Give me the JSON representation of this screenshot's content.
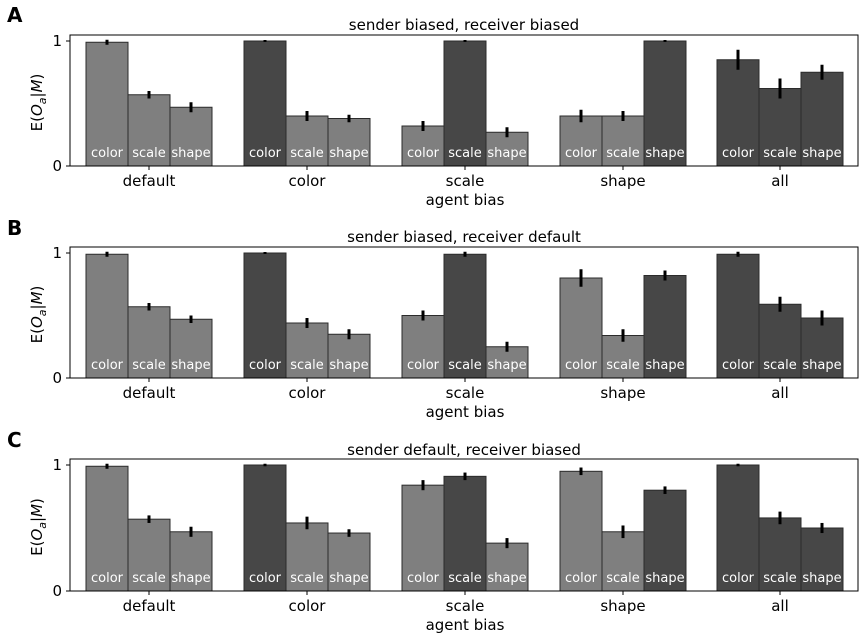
{
  "figure": {
    "shared_xlabel": "agent bias",
    "shared_ylabel": "E($O_a$|M)"
  },
  "colors": {
    "bar_default": "#7f7f7f",
    "bar_biased": "#474747",
    "edge": "#2b2b2b",
    "error": "#000000",
    "bar_label": "#ffffff"
  },
  "chart_data": [
    {
      "type": "bar",
      "panel_label": "A",
      "title": "sender biased, receiver biased",
      "xlabel": "agent bias",
      "ylabel": "E(O_a|M)",
      "categories": [
        "default",
        "color",
        "scale",
        "shape",
        "all"
      ],
      "bar_labels": [
        "color",
        "scale",
        "shape"
      ],
      "ylim": [
        0,
        1.0
      ],
      "yticks": [
        0,
        1
      ],
      "series": [
        {
          "name": "color",
          "values": [
            0.99,
            1.0,
            0.32,
            0.4,
            0.85
          ],
          "errors": [
            0.02,
            0.0,
            0.04,
            0.05,
            0.08
          ]
        },
        {
          "name": "scale",
          "values": [
            0.57,
            0.4,
            1.0,
            0.4,
            0.62
          ],
          "errors": [
            0.03,
            0.04,
            0.0,
            0.04,
            0.08
          ]
        },
        {
          "name": "shape",
          "values": [
            0.47,
            0.38,
            0.27,
            1.0,
            0.75
          ],
          "errors": [
            0.04,
            0.03,
            0.04,
            0.0,
            0.06
          ]
        }
      ],
      "biased": [
        [
          false,
          false,
          false
        ],
        [
          true,
          false,
          false
        ],
        [
          false,
          true,
          false
        ],
        [
          false,
          false,
          true
        ],
        [
          true,
          true,
          true
        ]
      ]
    },
    {
      "type": "bar",
      "panel_label": "B",
      "title": "sender biased, receiver default",
      "xlabel": "agent bias",
      "ylabel": "E(O_a|M)",
      "categories": [
        "default",
        "color",
        "scale",
        "shape",
        "all"
      ],
      "bar_labels": [
        "color",
        "scale",
        "shape"
      ],
      "ylim": [
        0,
        1.0
      ],
      "yticks": [
        0,
        1
      ],
      "series": [
        {
          "name": "color",
          "values": [
            0.99,
            1.0,
            0.5,
            0.8,
            0.99
          ],
          "errors": [
            0.02,
            0.0,
            0.04,
            0.07,
            0.02
          ]
        },
        {
          "name": "scale",
          "values": [
            0.57,
            0.44,
            0.99,
            0.34,
            0.59
          ],
          "errors": [
            0.03,
            0.04,
            0.02,
            0.05,
            0.06
          ]
        },
        {
          "name": "shape",
          "values": [
            0.47,
            0.35,
            0.25,
            0.82,
            0.48
          ],
          "errors": [
            0.03,
            0.04,
            0.04,
            0.04,
            0.06
          ]
        }
      ],
      "biased": [
        [
          false,
          false,
          false
        ],
        [
          true,
          false,
          false
        ],
        [
          false,
          true,
          false
        ],
        [
          false,
          false,
          true
        ],
        [
          true,
          true,
          true
        ]
      ]
    },
    {
      "type": "bar",
      "panel_label": "C",
      "title": "sender default, receiver biased",
      "xlabel": "agent bias",
      "ylabel": "E(O_a|M)",
      "categories": [
        "default",
        "color",
        "scale",
        "shape",
        "all"
      ],
      "bar_labels": [
        "color",
        "scale",
        "shape"
      ],
      "ylim": [
        0,
        1.0
      ],
      "yticks": [
        0,
        1
      ],
      "series": [
        {
          "name": "color",
          "values": [
            0.99,
            1.0,
            0.84,
            0.95,
            1.0
          ],
          "errors": [
            0.02,
            0.01,
            0.04,
            0.03,
            0.01
          ]
        },
        {
          "name": "scale",
          "values": [
            0.57,
            0.54,
            0.91,
            0.47,
            0.58
          ],
          "errors": [
            0.03,
            0.05,
            0.03,
            0.05,
            0.05
          ]
        },
        {
          "name": "shape",
          "values": [
            0.47,
            0.46,
            0.38,
            0.8,
            0.5
          ],
          "errors": [
            0.04,
            0.03,
            0.04,
            0.03,
            0.04
          ]
        }
      ],
      "biased": [
        [
          false,
          false,
          false
        ],
        [
          true,
          false,
          false
        ],
        [
          false,
          true,
          false
        ],
        [
          false,
          false,
          true
        ],
        [
          true,
          true,
          true
        ]
      ]
    }
  ]
}
